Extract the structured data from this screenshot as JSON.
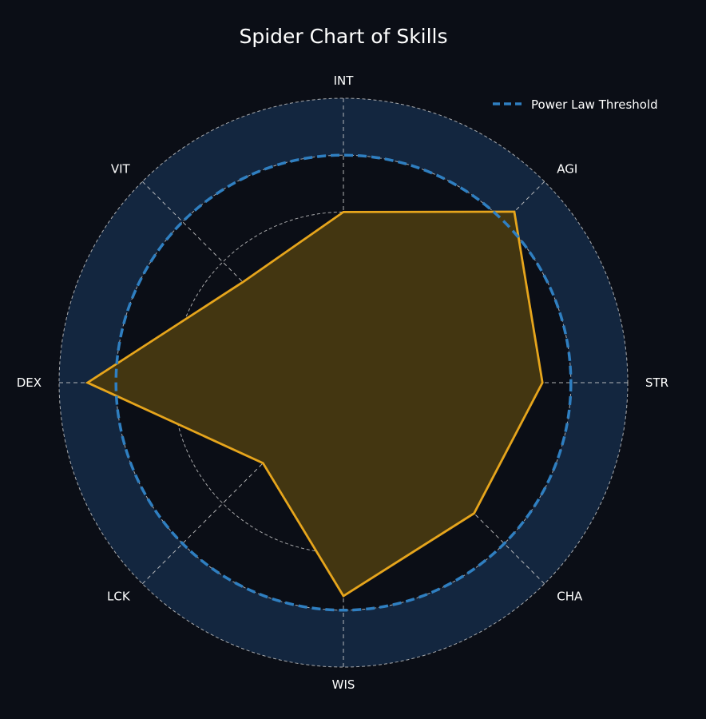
{
  "chart_data": {
    "type": "radar",
    "title": "Spider Chart of Skills",
    "axes": [
      "STR",
      "AGI",
      "INT",
      "VIT",
      "DEX",
      "LCK",
      "WIS",
      "CHA"
    ],
    "series": [
      {
        "values": [
          7,
          8.5,
          6,
          5,
          9,
          4,
          7.5,
          6.5
        ]
      }
    ],
    "rmax": 10,
    "rings": [
      2,
      4,
      6,
      8,
      10
    ],
    "threshold": {
      "name": "Power Law Threshold",
      "value": 8
    },
    "grid": true,
    "legend": "top-right",
    "colors": {
      "background": "#0b0e16",
      "band": "#13263f",
      "threshold": "#2f7fc1",
      "series_line": "#e6a51c",
      "series_fill": "#433611",
      "grid": "#cfcfcf"
    }
  }
}
